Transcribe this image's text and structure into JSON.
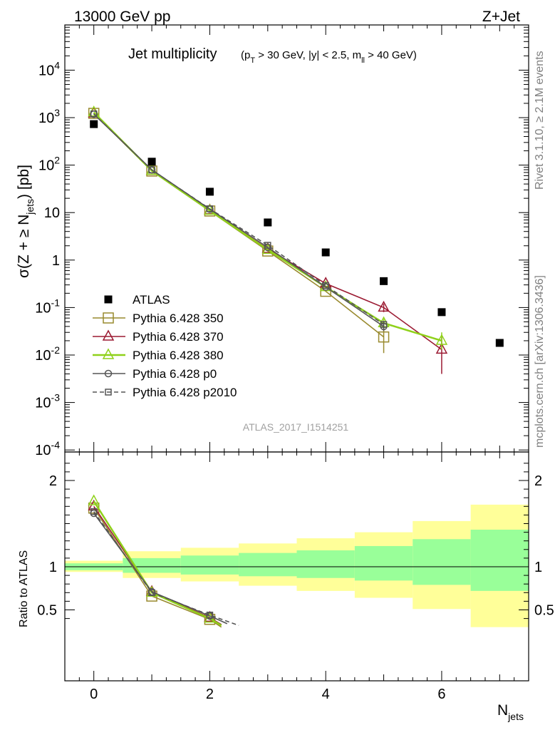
{
  "header": {
    "left": "13000 GeV pp",
    "right": "Z+Jet"
  },
  "side": {
    "rivet": "Rivet 3.1.10, ≥ 2.1M events",
    "mcplots": "mcplots.cern.ch [arXiv:1306.3436]"
  },
  "chart_data": [
    {
      "type": "line",
      "title": "Jet multiplicity",
      "subtitle": "(p_T > 30 GeV, |y| < 2.5, m_ll > 40 GeV)",
      "xlabel": "N_jets",
      "ylabel": "σ(Z + ≥ N_jets) [pb]",
      "yscale": "log",
      "xlim": [
        -0.5,
        7.5
      ],
      "ylim": [
        0.0001,
        100000
      ],
      "x_ticks": [
        "0",
        "2",
        "4",
        "6"
      ],
      "y_ticks": [
        "10^-4",
        "10^-3",
        "10^-2",
        "10^-1",
        "1",
        "10",
        "10^2",
        "10^3",
        "10^4"
      ],
      "legend_position": "bottom-left",
      "reference_label": "ATLAS_2017_I1514251",
      "data": {
        "name": "ATLAS",
        "x": [
          0,
          1,
          2,
          3,
          4,
          5,
          6,
          7
        ],
        "y": [
          730,
          118,
          27.5,
          6.2,
          1.45,
          0.36,
          0.08,
          0.018
        ]
      },
      "series": [
        {
          "name": "Pythia 6.428 350",
          "color": "#998a2e",
          "marker": "square-open",
          "dash": "solid",
          "x": [
            0,
            1,
            2,
            3,
            4,
            5
          ],
          "y": [
            1230,
            75,
            10.8,
            1.55,
            0.22,
            0.024
          ],
          "err_low": [
            null,
            null,
            null,
            null,
            null,
            0.011
          ],
          "err_high": [
            null,
            null,
            null,
            null,
            null,
            0.037
          ]
        },
        {
          "name": "Pythia 6.428 370",
          "color": "#9b1a32",
          "marker": "triangle-open",
          "dash": "solid",
          "x": [
            0,
            1,
            2,
            3,
            4,
            5,
            6
          ],
          "y": [
            1230,
            76,
            11.2,
            1.72,
            0.32,
            0.1,
            0.013
          ],
          "err_low": [
            null,
            null,
            null,
            null,
            null,
            0.08,
            0.004
          ],
          "err_high": [
            null,
            null,
            null,
            null,
            null,
            0.12,
            0.024
          ]
        },
        {
          "name": "Pythia 6.428 380",
          "color": "#8fd11a",
          "marker": "triangle-open",
          "dash": "solid",
          "x": [
            0,
            1,
            2,
            3,
            4,
            5,
            6
          ],
          "y": [
            1290,
            76,
            11.0,
            1.65,
            0.27,
            0.047,
            0.02
          ],
          "err_low": [
            null,
            null,
            null,
            null,
            null,
            0.037,
            0.013
          ],
          "err_high": [
            null,
            null,
            null,
            null,
            null,
            0.057,
            0.03
          ]
        },
        {
          "name": "Pythia 6.428 p0",
          "color": "#555555",
          "marker": "circle-open",
          "dash": "solid",
          "x": [
            0,
            1,
            2,
            3,
            4,
            5
          ],
          "y": [
            1180,
            80,
            11.8,
            1.85,
            0.27,
            0.04
          ],
          "err_low": [
            null,
            null,
            null,
            null,
            null,
            0.032
          ],
          "err_high": [
            null,
            null,
            null,
            null,
            null,
            0.048
          ]
        },
        {
          "name": "Pythia 6.428 p2010",
          "color": "#555555",
          "marker": "square-open-small",
          "dash": "dashed",
          "x": [
            0,
            1,
            2,
            3,
            4,
            5
          ],
          "y": [
            1200,
            79,
            12.0,
            2.05,
            0.29,
            0.044
          ],
          "err_low": [
            null,
            null,
            null,
            null,
            null,
            0.036
          ],
          "err_high": [
            null,
            null,
            null,
            null,
            null,
            0.052
          ]
        }
      ]
    },
    {
      "type": "line",
      "ylabel": "Ratio to ATLAS",
      "xlabel": "N_jets",
      "xlim": [
        -0.5,
        7.5
      ],
      "ylim": [
        0.35,
        2.3
      ],
      "y_ticks": [
        "0.5",
        "1",
        "2"
      ],
      "x_ticks": [
        "0",
        "2",
        "4",
        "6"
      ],
      "reference": 1,
      "bands": {
        "x_edges": [
          -0.5,
          0.5,
          1.5,
          2.5,
          3.5,
          4.5,
          5.5,
          6.5,
          7.5
        ],
        "yellow_low": [
          0.94,
          0.87,
          0.83,
          0.78,
          0.72,
          0.64,
          0.51,
          0.3
        ],
        "yellow_high": [
          1.07,
          1.18,
          1.22,
          1.27,
          1.33,
          1.4,
          1.53,
          1.72
        ],
        "green_low": [
          0.96,
          0.93,
          0.91,
          0.89,
          0.87,
          0.84,
          0.79,
          0.72
        ],
        "green_high": [
          1.04,
          1.1,
          1.13,
          1.16,
          1.19,
          1.24,
          1.32,
          1.43
        ]
      },
      "series": [
        {
          "name": "Pythia 6.428 350",
          "color": "#998a2e",
          "dash": "solid",
          "marker": "square-open",
          "x": [
            0,
            1,
            2,
            2.2
          ],
          "y": [
            1.68,
            0.66,
            0.39,
            0.3
          ]
        },
        {
          "name": "Pythia 6.428 370",
          "color": "#9b1a32",
          "dash": "solid",
          "marker": "triangle-open",
          "x": [
            0,
            1,
            2,
            2.2
          ],
          "y": [
            1.7,
            0.71,
            0.41,
            0.33
          ]
        },
        {
          "name": "Pythia 6.428 380",
          "color": "#8fd11a",
          "dash": "solid",
          "marker": "triangle-open",
          "x": [
            0,
            1,
            2,
            2.2
          ],
          "y": [
            1.76,
            0.7,
            0.4,
            0.32
          ]
        },
        {
          "name": "Pythia 6.428 p0",
          "color": "#555555",
          "dash": "solid",
          "marker": "circle-open",
          "x": [
            0,
            1,
            2,
            2.3
          ],
          "y": [
            1.62,
            0.71,
            0.43,
            0.34
          ]
        },
        {
          "name": "Pythia 6.428 p2010",
          "color": "#555555",
          "dash": "dashed",
          "marker": "square-open-small",
          "x": [
            0,
            1,
            2,
            2.5
          ],
          "y": [
            1.64,
            0.7,
            0.44,
            0.32
          ]
        }
      ]
    }
  ]
}
